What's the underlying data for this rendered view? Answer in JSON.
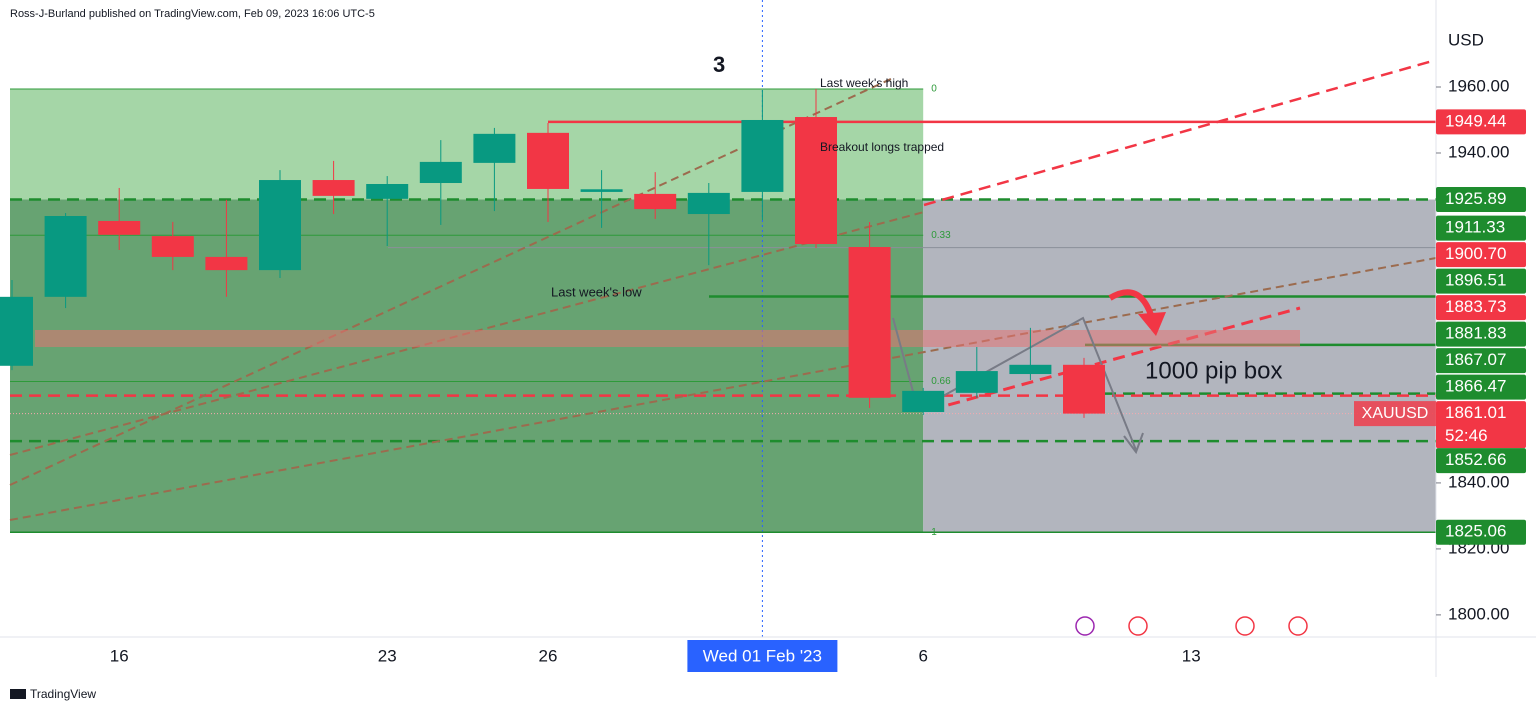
{
  "header": "Ross-J-Burland published on TradingView.com, Feb 09, 2023 16:06 UTC-5",
  "footer": "TradingView",
  "chart_data": {
    "type": "candlestick",
    "symbol": "XAUUSD",
    "currency": "USD",
    "countdown": "52:46",
    "annotations": [
      "3",
      "Last week's high",
      "Breakout longs trapped",
      "Last week's low",
      "1000 pip box"
    ],
    "categories": [
      null,
      null,
      "16",
      null,
      null,
      null,
      null,
      "23",
      null,
      null,
      "26",
      null,
      null,
      null,
      "Wed 01 Feb '23",
      null,
      null,
      "6",
      null,
      null,
      null,
      null,
      "13"
    ],
    "crosshair": 14,
    "open": [
      1875.5,
      1896.4,
      1919.4,
      1914.8,
      1908.5,
      1904.5,
      1931.8,
      1926.1,
      1930.9,
      1937,
      1946.1,
      1928.2,
      1927.6,
      1921.5,
      1928.2,
      1950.9,
      1911.5,
      1861.5,
      1867.3,
      1873,
      1875.8,
      null,
      null
    ],
    "high": [
      1901.5,
      1921.8,
      1929.4,
      1919.1,
      1925.8,
      1934.8,
      1937.6,
      1933,
      1943.9,
      1947.6,
      1949.1,
      1934.8,
      1934.2,
      1930.9,
      1959.1,
      1959.4,
      1919.1,
      1868.8,
      1881.2,
      1887,
      1877.9,
      null,
      null
    ],
    "low": [
      1874.2,
      1893,
      1910.6,
      1904.5,
      1896.4,
      1902.1,
      1921.5,
      1911.8,
      1918.2,
      1922.4,
      1919.1,
      1917.3,
      1920,
      1906,
      1919.7,
      1911.2,
      1862.7,
      1860.6,
      1865.8,
      1871.2,
      1859.7,
      null,
      null
    ],
    "close": [
      1896.4,
      1920.9,
      1915.2,
      1908.5,
      1904.5,
      1931.8,
      1927,
      1930.6,
      1937.3,
      1945.8,
      1929.1,
      1929,
      1923,
      1927.9,
      1950,
      1912.4,
      1865.8,
      1867.9,
      1873.9,
      1875.8,
      1861.01,
      null,
      null
    ],
    "up_color": "#089981",
    "down_color": "#f23645",
    "ylim": [
      1793.3,
      1979.7
    ],
    "yticks": [
      {
        "value": 1800,
        "label": "1800.00"
      },
      {
        "value": 1820,
        "label": "1820.00"
      },
      {
        "value": 1840,
        "label": "1840.00"
      },
      {
        "value": 1940,
        "label": "1940.00"
      },
      {
        "value": 1960,
        "label": "1960.00"
      }
    ],
    "grid": false,
    "fib": {
      "range": [
        1959.4,
        1825.06
      ],
      "levels": [
        0,
        0.33,
        0.66,
        1
      ],
      "color": "#2e9a3a"
    },
    "price_labels": [
      {
        "value": 1949.44,
        "color": "#f23645"
      },
      {
        "value": 1925.89,
        "color": "#1e8c2e"
      },
      {
        "value": 1911.33,
        "color": "#1e8c2e"
      },
      {
        "value": 1900.7,
        "label": "1900.70",
        "color": "#f23645"
      },
      {
        "value": 1896.51,
        "color": "#1e8c2e"
      },
      {
        "value": 1883.73,
        "color": "#f23645"
      },
      {
        "value": 1881.83,
        "color": "#1e8c2e"
      },
      {
        "value": 1867.07,
        "color": "#1e8c2e"
      },
      {
        "value": 1866.47,
        "color": "#1e8c2e"
      },
      {
        "value": 1861.01,
        "color": "#f23645"
      },
      {
        "value": 1852.66,
        "color": "#1e8c2e"
      },
      {
        "value": 1825.06,
        "color": "#1e8c2e"
      }
    ]
  }
}
